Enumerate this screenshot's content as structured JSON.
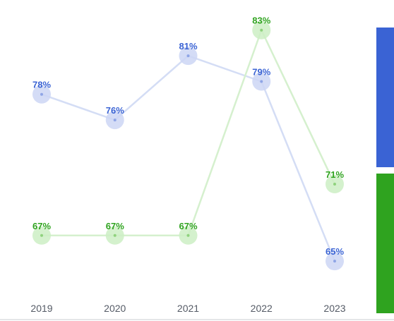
{
  "chart_data": {
    "type": "line",
    "categories": [
      "2019",
      "2020",
      "2021",
      "2022",
      "2023"
    ],
    "series": [
      {
        "values": [
          78,
          76,
          81,
          79,
          65
        ],
        "labels": [
          "78%",
          "76%",
          "81%",
          "79%",
          "65%"
        ],
        "color": "#3a63d4",
        "line_color": "#d4ddf5",
        "marker_color": "#ccd6f4",
        "point_color": "#8fa5e6"
      },
      {
        "values": [
          67,
          67,
          67,
          83,
          71
        ],
        "labels": [
          "67%",
          "67%",
          "67%",
          "83%",
          "71%"
        ],
        "color": "#2fa31f",
        "line_color": "#d5f0ce",
        "marker_color": "#cdeec4",
        "point_color": "#8fd27d"
      }
    ],
    "value_suffix": "%",
    "ylim": [
      63.8,
      83.7
    ],
    "grid": false,
    "legend": "right",
    "title": "",
    "xlabel": "",
    "ylabel": ""
  }
}
